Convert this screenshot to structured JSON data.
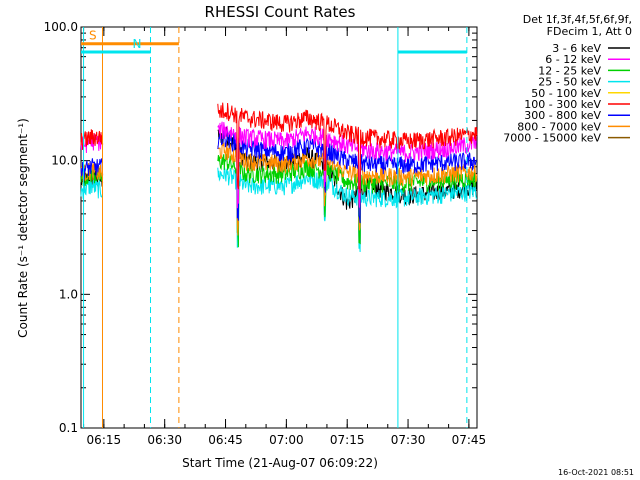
{
  "chart_data": {
    "type": "line",
    "title": "RHESSI Count Rates",
    "xlabel": "Start Time (21-Aug-07 06:09:22)",
    "ylabel": "Count Rate (s⁻¹ detector segment⁻¹)",
    "yscale": "log",
    "ylim": [
      0.1,
      100
    ],
    "xlim": [
      "06:09:22",
      "07:47:00"
    ],
    "x_ticks": [
      "06:15",
      "06:30",
      "06:45",
      "07:00",
      "07:15",
      "07:30",
      "07:45"
    ],
    "y_ticks": [
      "0.1",
      "1.0",
      "10.0",
      "100.0"
    ],
    "grid": false,
    "legend_position": "outside-right",
    "legend_header": [
      "Det 1f,3f,4f,5f,6f,9f,",
      "FDecim 1, Att 0"
    ],
    "timestamp": "16-Oct-2021 08:51",
    "series": [
      {
        "name": "3 - 6 keV",
        "color": "#000000",
        "x": [
          "06:09:22",
          "06:12:00",
          "06:14:30",
          "06:45:00",
          "06:50:00",
          "07:00:00",
          "07:05:00",
          "07:10:00",
          "07:15:00",
          "07:20:00",
          "07:30:00",
          "07:40:00",
          "07:47:00"
        ],
        "y": [
          7,
          7.5,
          7,
          16,
          10,
          9.5,
          11,
          9,
          4.8,
          6.5,
          5.5,
          6,
          6.5
        ]
      },
      {
        "name": "6 - 12 keV",
        "color": "#ff00ff",
        "x": [
          "06:09:22",
          "06:12:00",
          "06:14:30",
          "06:45:00",
          "06:50:00",
          "07:00:00",
          "07:05:00",
          "07:10:00",
          "07:15:00",
          "07:20:00",
          "07:30:00",
          "07:40:00",
          "07:47:00"
        ],
        "y": [
          13,
          14,
          14,
          17,
          15,
          14,
          16,
          15,
          13,
          12,
          11.5,
          12.5,
          13.5
        ]
      },
      {
        "name": "12 - 25 keV",
        "color": "#00d000",
        "x": [
          "06:09:22",
          "06:12:00",
          "06:14:30",
          "06:45:00",
          "06:50:00",
          "07:00:00",
          "07:05:00",
          "07:10:00",
          "07:15:00",
          "07:20:00",
          "07:30:00",
          "07:40:00",
          "07:47:00"
        ],
        "y": [
          7.5,
          8,
          7.5,
          10,
          8,
          8,
          9,
          8.5,
          7,
          6.8,
          6.8,
          7.2,
          7.5
        ]
      },
      {
        "name": "25 - 50 keV",
        "color": "#00e5ee",
        "x": [
          "06:09:22",
          "06:12:00",
          "06:14:30",
          "06:45:00",
          "06:50:00",
          "07:00:00",
          "07:05:00",
          "07:10:00",
          "07:15:00",
          "07:20:00",
          "07:30:00",
          "07:40:00",
          "07:47:00"
        ],
        "y": [
          6,
          6.5,
          6,
          8,
          6.5,
          6.5,
          7.5,
          7,
          5.5,
          5.3,
          5.3,
          5.7,
          6
        ]
      },
      {
        "name": "50 - 100 keV",
        "color": "#ffd700",
        "x": [],
        "y": []
      },
      {
        "name": "100 - 300 keV",
        "color": "#ff0000",
        "x": [
          "06:09:22",
          "06:12:00",
          "06:14:30",
          "06:45:00",
          "06:50:00",
          "07:00:00",
          "07:05:00",
          "07:10:00",
          "07:15:00",
          "07:20:00",
          "07:30:00",
          "07:40:00",
          "07:47:00"
        ],
        "y": [
          14,
          15,
          15,
          24,
          21,
          19,
          21,
          19,
          16,
          15,
          14,
          15,
          16
        ]
      },
      {
        "name": "300 - 800 keV",
        "color": "#0000ff",
        "x": [
          "06:09:22",
          "06:12:00",
          "06:14:30",
          "06:45:00",
          "06:50:00",
          "07:00:00",
          "07:05:00",
          "07:10:00",
          "07:15:00",
          "07:20:00",
          "07:30:00",
          "07:40:00",
          "07:47:00"
        ],
        "y": [
          8.5,
          9,
          9,
          15,
          12.5,
          11.5,
          13,
          12,
          10,
          9.5,
          9.3,
          9.8,
          10
        ]
      },
      {
        "name": "800 - 7000 keV",
        "color": "#ff8c00",
        "x": [
          "06:09:22",
          "06:12:00",
          "06:14:30",
          "06:45:00",
          "06:50:00",
          "07:00:00",
          "07:05:00",
          "07:10:00",
          "07:15:00",
          "07:20:00",
          "07:30:00",
          "07:40:00",
          "07:47:00"
        ],
        "y": [
          8,
          8.5,
          8,
          12,
          10,
          9.5,
          10.5,
          9.8,
          8.2,
          7.8,
          7.6,
          8,
          8.3
        ]
      },
      {
        "name": "7000 - 15000 keV",
        "color": "#8b5a00",
        "x": [],
        "y": []
      }
    ],
    "vertical_markers": [
      {
        "time": "06:14:40",
        "color": "#ff8c00",
        "style": "solid"
      },
      {
        "time": "06:10:00",
        "color": "#00e5ee",
        "style": "solid"
      },
      {
        "time": "06:26:30",
        "color": "#00e5ee",
        "style": "dashed"
      },
      {
        "time": "06:33:30",
        "color": "#ff8c00",
        "style": "dashed"
      },
      {
        "time": "07:27:30",
        "color": "#00e5ee",
        "style": "solid"
      },
      {
        "time": "07:44:30",
        "color": "#00e5ee",
        "style": "dashed"
      }
    ],
    "intervals": [
      {
        "label": "S",
        "start": "06:09:22",
        "end": "06:33:30",
        "level": 75,
        "color": "#ff8c00"
      },
      {
        "label": "N",
        "start": "06:09:22",
        "end": "06:26:30",
        "level": 65,
        "color": "#00e5ee"
      },
      {
        "label": "",
        "start": "07:27:30",
        "end": "07:44:30",
        "level": 65,
        "color": "#00e5ee"
      }
    ]
  }
}
